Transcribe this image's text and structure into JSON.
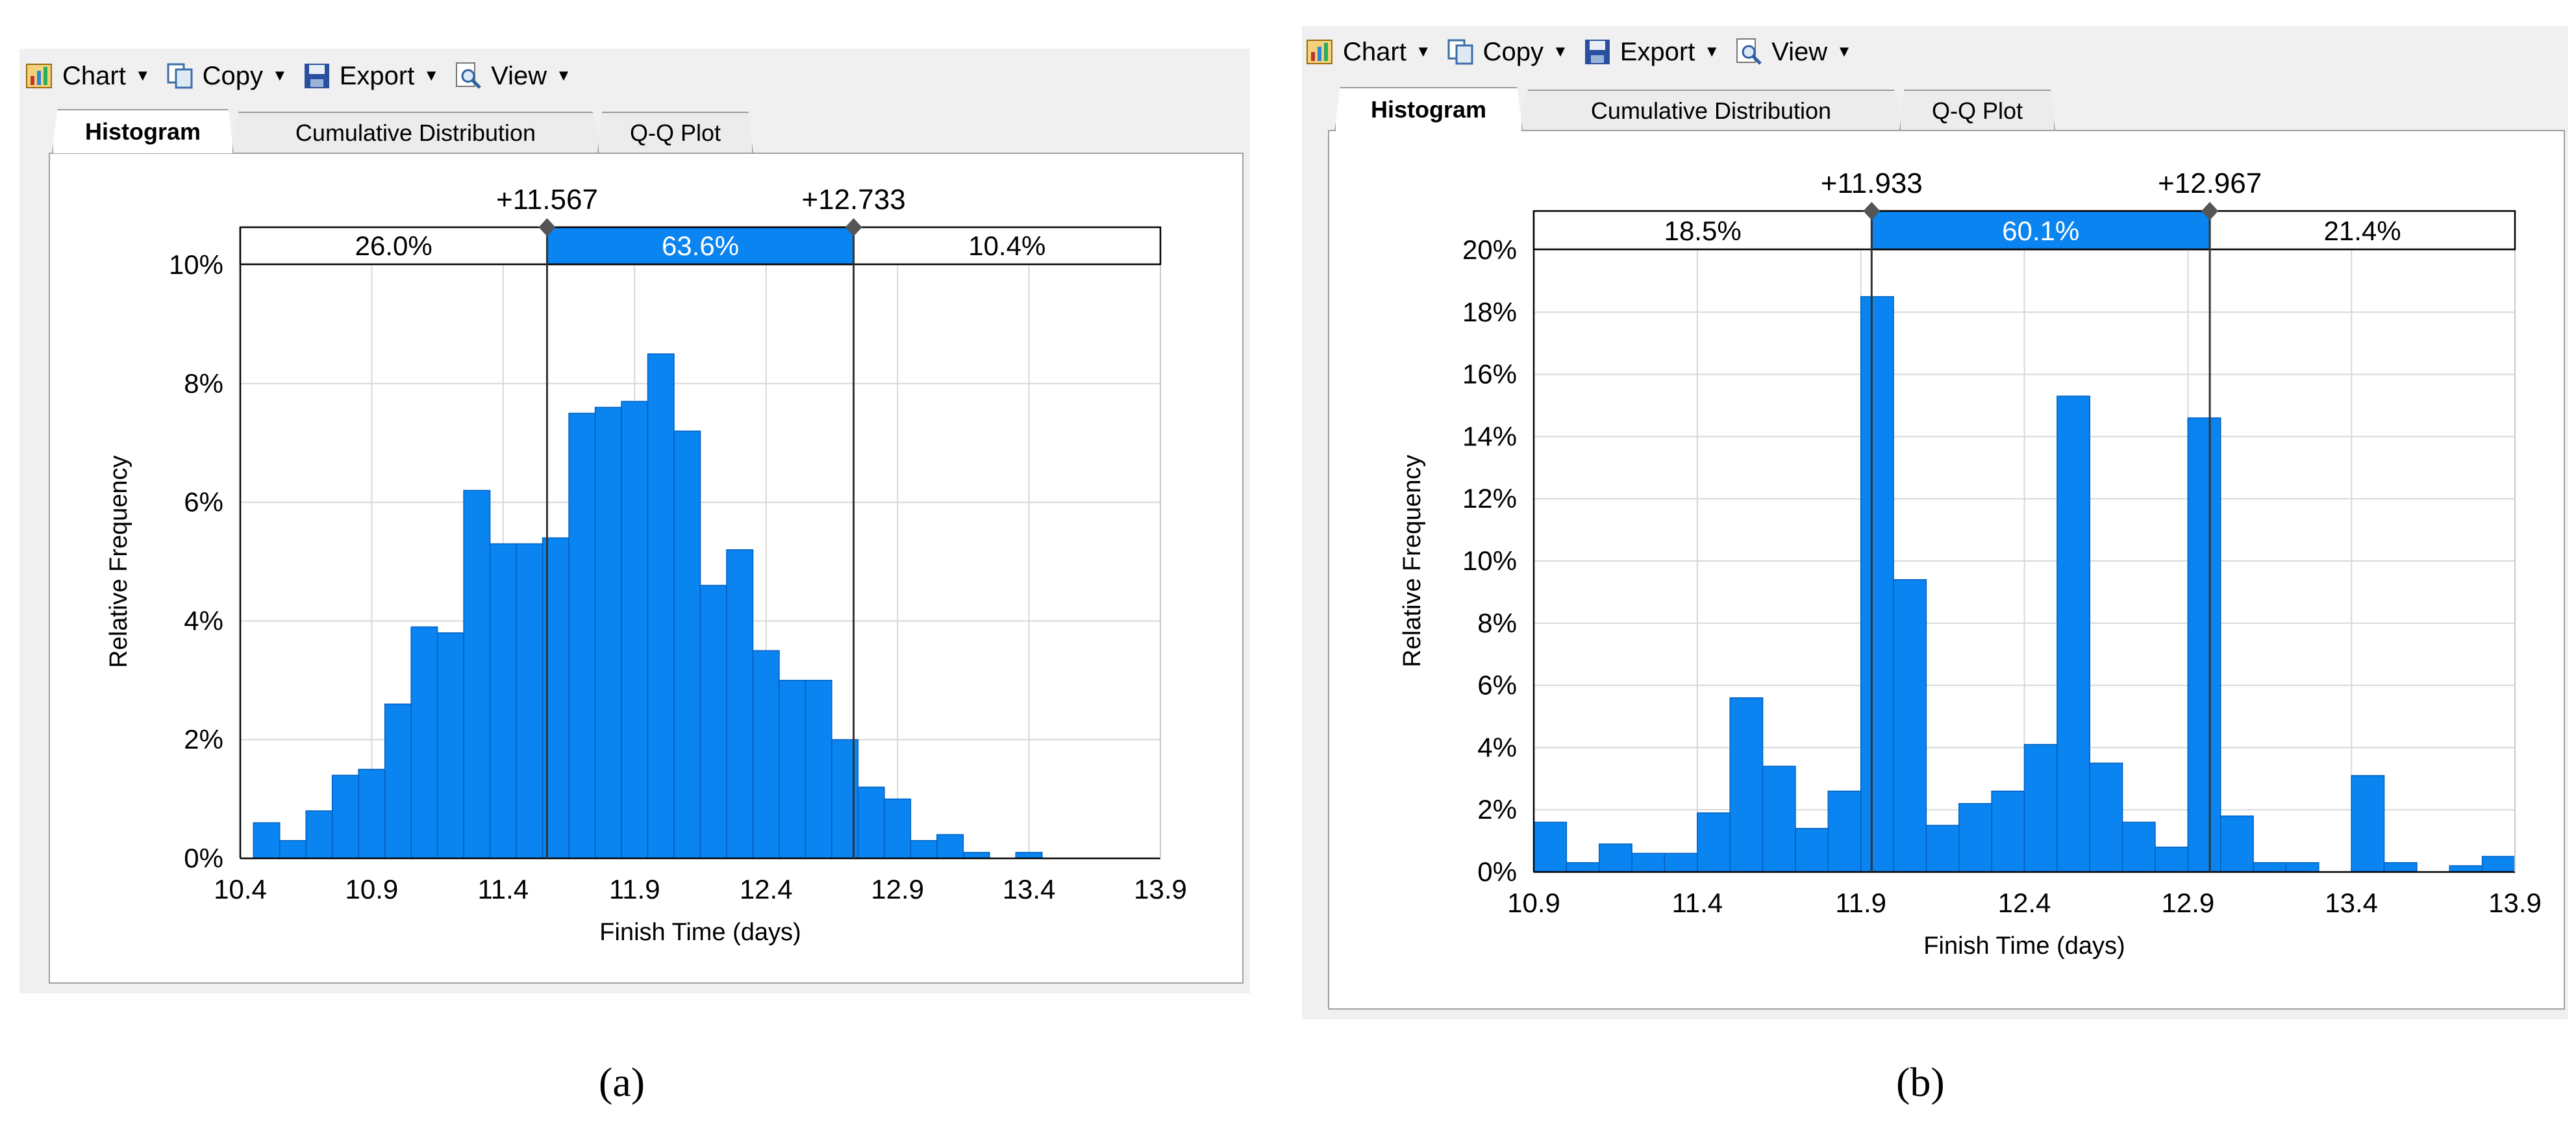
{
  "toolbar": {
    "chart_label": "Chart",
    "copy_label": "Copy",
    "export_label": "Export",
    "view_label": "View"
  },
  "tabs": [
    "Histogram",
    "Cumulative Distribution",
    "Q-Q Plot"
  ],
  "colors": {
    "bar": "#0a84f0",
    "bar_edge": "#0060c0",
    "grid": "#d8d8d8"
  },
  "chart_data": [
    {
      "type": "bar",
      "caption": "(a)",
      "xlabel": "Finish Time (days)",
      "ylabel": "Relative Frequency",
      "xlim": [
        10.4,
        13.9
      ],
      "ylim": [
        0,
        10
      ],
      "xticks": [
        "10.4",
        "10.9",
        "11.4",
        "11.9",
        "12.4",
        "12.9",
        "13.4",
        "13.9"
      ],
      "yticks": [
        "0%",
        "2%",
        "4%",
        "6%",
        "8%",
        "10%"
      ],
      "bin_start": 10.45,
      "bin_width": 0.1,
      "values": [
        0.6,
        0.3,
        0.8,
        1.4,
        1.5,
        2.6,
        3.9,
        3.8,
        6.2,
        5.3,
        5.3,
        5.4,
        7.5,
        7.6,
        7.7,
        8.5,
        7.2,
        4.6,
        5.2,
        3.5,
        3.0,
        3.0,
        2.0,
        1.2,
        1.0,
        0.3,
        0.4,
        0.1,
        0.0,
        0.1
      ],
      "markers": [
        "+11.567",
        "+12.733"
      ],
      "marker_values": [
        11.567,
        12.733
      ],
      "regions": [
        "26.0%",
        "63.6%",
        "10.4%"
      ]
    },
    {
      "type": "bar",
      "caption": "(b)",
      "xlabel": "Finish Time (days)",
      "ylabel": "Relative Frequency",
      "xlim": [
        10.9,
        13.9
      ],
      "ylim": [
        0,
        20
      ],
      "xticks": [
        "10.9",
        "11.4",
        "11.9",
        "12.4",
        "12.9",
        "13.4",
        "13.9"
      ],
      "yticks": [
        "0%",
        "2%",
        "4%",
        "6%",
        "8%",
        "10%",
        "12%",
        "14%",
        "16%",
        "18%",
        "20%"
      ],
      "bin_start": 10.9,
      "bin_width": 0.1,
      "values": [
        1.6,
        0.3,
        0.9,
        0.6,
        0.6,
        1.9,
        5.6,
        3.4,
        1.4,
        2.6,
        18.5,
        9.4,
        1.5,
        2.2,
        2.6,
        4.1,
        15.3,
        3.5,
        1.6,
        0.8,
        14.6,
        1.8,
        0.3,
        0.3,
        0.0,
        3.1,
        0.3,
        0.0,
        0.2,
        0.5
      ],
      "markers": [
        "+11.933",
        "+12.967"
      ],
      "marker_values": [
        11.933,
        12.967
      ],
      "regions": [
        "18.5%",
        "60.1%",
        "21.4%"
      ]
    }
  ]
}
